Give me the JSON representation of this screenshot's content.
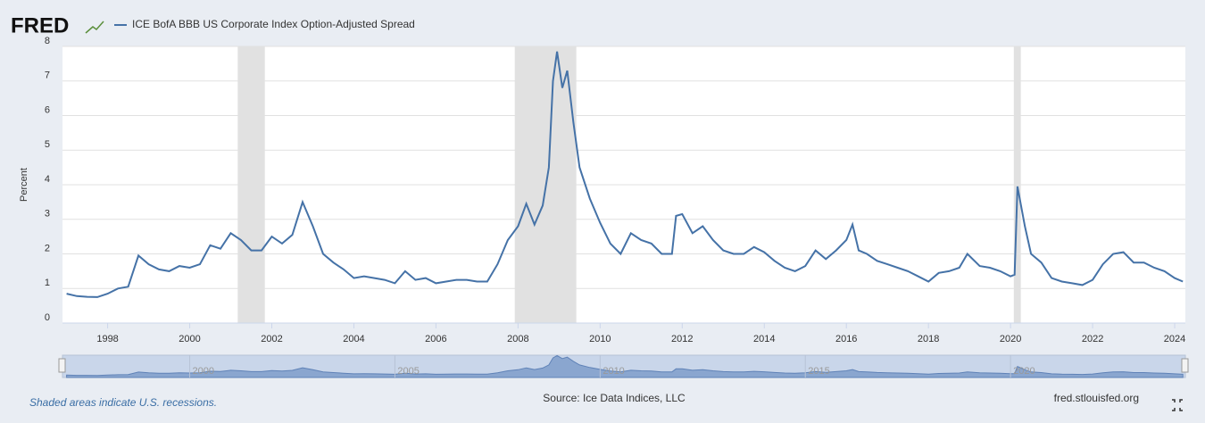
{
  "chart_data": {
    "type": "line",
    "brand": "FRED",
    "ylabel": "Percent",
    "note": "Shaded areas indicate U.S. recessions.",
    "source": "Source: Ice Data Indices, LLC",
    "site": "fred.stlouisfed.org",
    "grid": true,
    "xlim": [
      1996.9,
      2024.26
    ],
    "ylim": [
      0,
      8
    ],
    "yticks": [
      0,
      1,
      2,
      3,
      4,
      5,
      6,
      7,
      8
    ],
    "xticks": [
      1998,
      2000,
      2002,
      2004,
      2006,
      2008,
      2010,
      2012,
      2014,
      2016,
      2018,
      2020,
      2022,
      2024
    ],
    "navigator_ticks": [
      2000,
      2005,
      2010,
      2015,
      2020
    ],
    "recessions": [
      [
        2001.17,
        2001.83
      ],
      [
        2007.92,
        2009.42
      ],
      [
        2020.08,
        2020.25
      ]
    ],
    "x": [
      1997.0,
      1997.25,
      1997.5,
      1997.75,
      1998.0,
      1998.25,
      1998.5,
      1998.75,
      1999.0,
      1999.25,
      1999.5,
      1999.75,
      2000.0,
      2000.25,
      2000.5,
      2000.75,
      2001.0,
      2001.25,
      2001.5,
      2001.75,
      2002.0,
      2002.25,
      2002.5,
      2002.75,
      2003.0,
      2003.25,
      2003.5,
      2003.75,
      2004.0,
      2004.25,
      2004.5,
      2004.75,
      2005.0,
      2005.25,
      2005.5,
      2005.75,
      2006.0,
      2006.25,
      2006.5,
      2006.75,
      2007.0,
      2007.25,
      2007.5,
      2007.75,
      2008.0,
      2008.2,
      2008.4,
      2008.6,
      2008.75,
      2008.85,
      2008.95,
      2009.08,
      2009.2,
      2009.35,
      2009.5,
      2009.75,
      2010.0,
      2010.25,
      2010.5,
      2010.75,
      2011.0,
      2011.25,
      2011.5,
      2011.75,
      2011.85,
      2012.0,
      2012.25,
      2012.5,
      2012.75,
      2013.0,
      2013.25,
      2013.5,
      2013.75,
      2014.0,
      2014.25,
      2014.5,
      2014.75,
      2015.0,
      2015.25,
      2015.5,
      2015.75,
      2016.0,
      2016.15,
      2016.3,
      2016.5,
      2016.75,
      2017.0,
      2017.25,
      2017.5,
      2017.75,
      2018.0,
      2018.25,
      2018.5,
      2018.75,
      2018.95,
      2019.25,
      2019.5,
      2019.75,
      2020.0,
      2020.1,
      2020.17,
      2020.35,
      2020.5,
      2020.75,
      2021.0,
      2021.25,
      2021.5,
      2021.75,
      2022.0,
      2022.25,
      2022.5,
      2022.75,
      2023.0,
      2023.25,
      2023.5,
      2023.75,
      2024.0,
      2024.2
    ],
    "series": [
      {
        "name": "ICE BofA BBB US Corporate Index Option-Adjusted Spread",
        "color": "#4572a7",
        "values": [
          0.85,
          0.78,
          0.76,
          0.75,
          0.85,
          1.0,
          1.05,
          1.95,
          1.7,
          1.55,
          1.5,
          1.65,
          1.6,
          1.7,
          2.25,
          2.15,
          2.6,
          2.4,
          2.1,
          2.1,
          2.5,
          2.3,
          2.55,
          3.5,
          2.8,
          2.0,
          1.75,
          1.55,
          1.3,
          1.35,
          1.3,
          1.25,
          1.15,
          1.5,
          1.25,
          1.3,
          1.15,
          1.2,
          1.25,
          1.25,
          1.2,
          1.2,
          1.7,
          2.4,
          2.8,
          3.45,
          2.85,
          3.4,
          4.5,
          7.0,
          7.85,
          6.8,
          7.3,
          5.8,
          4.5,
          3.6,
          2.9,
          2.3,
          2.0,
          2.6,
          2.4,
          2.3,
          2.0,
          2.0,
          3.1,
          3.15,
          2.6,
          2.8,
          2.4,
          2.1,
          2.0,
          2.0,
          2.2,
          2.05,
          1.8,
          1.6,
          1.5,
          1.65,
          2.1,
          1.85,
          2.1,
          2.4,
          2.85,
          2.1,
          2.0,
          1.8,
          1.7,
          1.6,
          1.5,
          1.35,
          1.2,
          1.45,
          1.5,
          1.6,
          2.0,
          1.65,
          1.6,
          1.5,
          1.35,
          1.4,
          3.95,
          2.8,
          2.0,
          1.75,
          1.3,
          1.2,
          1.15,
          1.1,
          1.25,
          1.7,
          2.0,
          2.05,
          1.75,
          1.75,
          1.6,
          1.5,
          1.3,
          1.2
        ]
      }
    ]
  }
}
